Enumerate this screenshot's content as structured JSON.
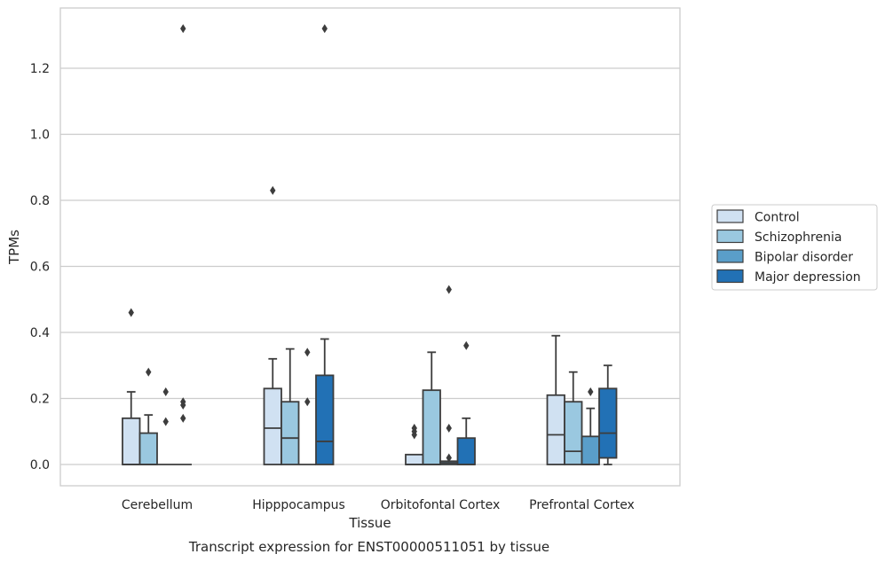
{
  "chart_data": {
    "type": "box",
    "title": "",
    "caption": "Transcript expression for ENST00000511051 by tissue",
    "xlabel": "Tissue",
    "ylabel": "TPMs",
    "ylim": [
      -0.065,
      1.39
    ],
    "yticks": [
      0.0,
      0.2,
      0.4,
      0.6,
      0.8,
      1.0,
      1.2
    ],
    "ytick_labels": [
      "0.0",
      "0.2",
      "0.4",
      "0.6",
      "0.8",
      "1.0",
      "1.2"
    ],
    "grid": true,
    "legend_position": "right",
    "categories": [
      "Cerebellum",
      "Hipppocampus",
      "Orbitofontal Cortex",
      "Prefrontal Cortex"
    ],
    "series": [
      {
        "name": "Control",
        "color": "#d0e1f2",
        "boxes": [
          {
            "q1": 0.0,
            "median": 0.0,
            "q3": 0.14,
            "whisker_low": 0.0,
            "whisker_high": 0.22,
            "outliers": [
              0.46
            ]
          },
          {
            "q1": 0.0,
            "median": 0.11,
            "q3": 0.23,
            "whisker_low": 0.0,
            "whisker_high": 0.32,
            "outliers": [
              0.83
            ]
          },
          {
            "q1": 0.0,
            "median": 0.0,
            "q3": 0.03,
            "whisker_low": 0.0,
            "whisker_high": 0.03,
            "outliers": [
              0.11,
              0.1,
              0.09
            ]
          },
          {
            "q1": 0.0,
            "median": 0.09,
            "q3": 0.21,
            "whisker_low": 0.0,
            "whisker_high": 0.39,
            "outliers": []
          }
        ]
      },
      {
        "name": "Schizophrenia",
        "color": "#9ac8e0",
        "boxes": [
          {
            "q1": 0.0,
            "median": 0.0,
            "q3": 0.095,
            "whisker_low": 0.0,
            "whisker_high": 0.15,
            "outliers": [
              0.28
            ]
          },
          {
            "q1": 0.0,
            "median": 0.08,
            "q3": 0.19,
            "whisker_low": 0.0,
            "whisker_high": 0.35,
            "outliers": []
          },
          {
            "q1": 0.0,
            "median": 0.0,
            "q3": 0.225,
            "whisker_low": 0.0,
            "whisker_high": 0.34,
            "outliers": []
          },
          {
            "q1": 0.0,
            "median": 0.04,
            "q3": 0.19,
            "whisker_low": 0.0,
            "whisker_high": 0.28,
            "outliers": []
          }
        ]
      },
      {
        "name": "Bipolar disorder",
        "color": "#5a9ec9",
        "boxes": [
          {
            "q1": 0.0,
            "median": 0.0,
            "q3": 0.0,
            "whisker_low": 0.0,
            "whisker_high": 0.0,
            "outliers": [
              0.22,
              0.13
            ]
          },
          {
            "q1": 0.0,
            "median": 0.0,
            "q3": 0.0,
            "whisker_low": 0.0,
            "whisker_high": 0.0,
            "outliers": [
              0.34,
              0.19
            ]
          },
          {
            "q1": 0.0,
            "median": 0.005,
            "q3": 0.01,
            "whisker_low": 0.0,
            "whisker_high": 0.01,
            "outliers": [
              0.53,
              0.11,
              0.02
            ]
          },
          {
            "q1": 0.0,
            "median": 0.0,
            "q3": 0.085,
            "whisker_low": 0.0,
            "whisker_high": 0.17,
            "outliers": [
              0.22
            ]
          }
        ]
      },
      {
        "name": "Major depression",
        "color": "#2271b5",
        "boxes": [
          {
            "q1": 0.0,
            "median": 0.0,
            "q3": 0.0,
            "whisker_low": 0.0,
            "whisker_high": 0.0,
            "outliers": [
              1.32,
              0.19,
              0.18,
              0.14
            ]
          },
          {
            "q1": 0.0,
            "median": 0.07,
            "q3": 0.27,
            "whisker_low": 0.0,
            "whisker_high": 0.38,
            "outliers": [
              1.32
            ]
          },
          {
            "q1": 0.0,
            "median": 0.0,
            "q3": 0.08,
            "whisker_low": 0.0,
            "whisker_high": 0.14,
            "outliers": [
              0.36
            ]
          },
          {
            "q1": 0.02,
            "median": 0.095,
            "q3": 0.23,
            "whisker_low": 0.0,
            "whisker_high": 0.3,
            "outliers": []
          }
        ]
      }
    ]
  }
}
